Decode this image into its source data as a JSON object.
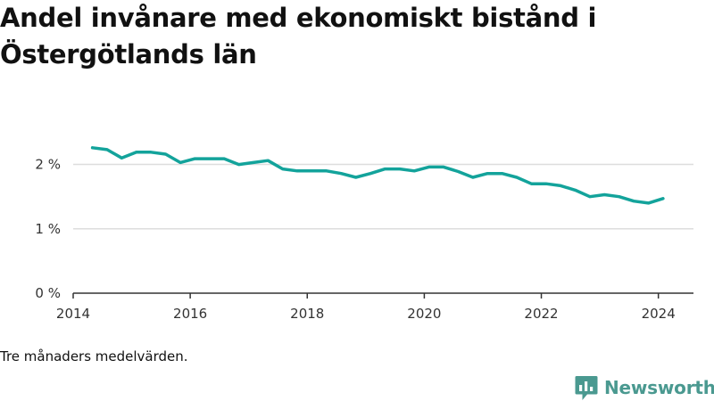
{
  "title": "Andel invånare med ekonomiskt bistånd i Östergötlands län",
  "note": "Tre månaders medelvärden.",
  "brand": {
    "name": "Newsworthy",
    "icon": "newsworthy-logo-icon",
    "color": "#4a9990"
  },
  "colors": {
    "line": "#13a39b",
    "grid": "#dddddd",
    "axis": "#333333"
  },
  "chart_data": {
    "type": "line",
    "title": "Andel invånare med ekonomiskt bistånd i Östergötlands län",
    "xlabel": "",
    "ylabel": "",
    "xlim": [
      2014,
      2024.6
    ],
    "ylim": [
      0,
      2.7
    ],
    "x_ticks": [
      {
        "value": 2014,
        "label": "2014"
      },
      {
        "value": 2016,
        "label": "2016"
      },
      {
        "value": 2018,
        "label": "2018"
      },
      {
        "value": 2020,
        "label": "2020"
      },
      {
        "value": 2022,
        "label": "2022"
      },
      {
        "value": 2024,
        "label": "2024"
      }
    ],
    "y_ticks": [
      {
        "value": 0,
        "label": "0 %"
      },
      {
        "value": 1,
        "label": "1 %"
      },
      {
        "value": 2,
        "label": "2 %"
      }
    ],
    "grid": true,
    "legend": "none",
    "series": [
      {
        "x": [
          2014.33,
          2014.58,
          2014.83,
          2015.08,
          2015.33,
          2015.58,
          2015.83,
          2016.08,
          2016.33,
          2016.58,
          2016.83,
          2017.08,
          2017.33,
          2017.58,
          2017.83,
          2018.08,
          2018.33,
          2018.58,
          2018.83,
          2019.08,
          2019.33,
          2019.58,
          2019.83,
          2020.08,
          2020.33,
          2020.58,
          2020.83,
          2021.08,
          2021.33,
          2021.58,
          2021.83,
          2022.08,
          2022.33,
          2022.58,
          2022.83,
          2023.08,
          2023.33,
          2023.58,
          2023.83,
          2024.08
        ],
        "values": [
          2.26,
          2.23,
          2.1,
          2.19,
          2.19,
          2.16,
          2.03,
          2.09,
          2.09,
          2.09,
          2.0,
          2.03,
          2.06,
          1.93,
          1.9,
          1.9,
          1.9,
          1.86,
          1.8,
          1.86,
          1.93,
          1.93,
          1.9,
          1.96,
          1.96,
          1.89,
          1.8,
          1.86,
          1.86,
          1.8,
          1.7,
          1.7,
          1.67,
          1.6,
          1.5,
          1.53,
          1.5,
          1.43,
          1.4,
          1.47
        ]
      }
    ]
  }
}
